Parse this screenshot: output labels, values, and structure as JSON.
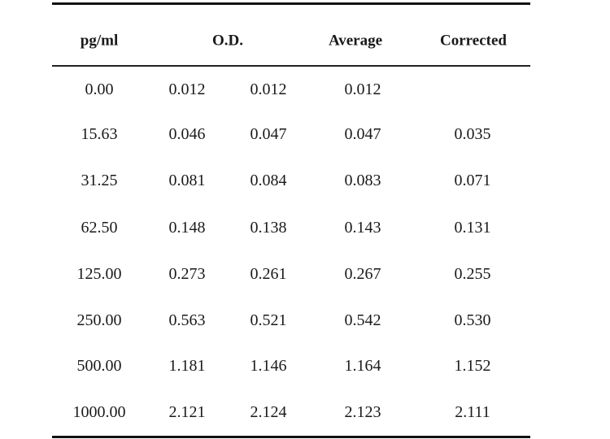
{
  "table": {
    "headers": {
      "concentration": "pg/ml",
      "od": "O.D.",
      "average": "Average",
      "corrected": "Corrected"
    },
    "rows": [
      {
        "conc": "0.00",
        "od1": "0.012",
        "od2": "0.012",
        "avg": "0.012",
        "corr": ""
      },
      {
        "conc": "15.63",
        "od1": "0.046",
        "od2": "0.047",
        "avg": "0.047",
        "corr": "0.035"
      },
      {
        "conc": "31.25",
        "od1": "0.081",
        "od2": "0.084",
        "avg": "0.083",
        "corr": "0.071"
      },
      {
        "conc": "62.50",
        "od1": "0.148",
        "od2": "0.138",
        "avg": "0.143",
        "corr": "0.131"
      },
      {
        "conc": "125.00",
        "od1": "0.273",
        "od2": "0.261",
        "avg": "0.267",
        "corr": "0.255"
      },
      {
        "conc": "250.00",
        "od1": "0.563",
        "od2": "0.521",
        "avg": "0.542",
        "corr": "0.530"
      },
      {
        "conc": "500.00",
        "od1": "1.181",
        "od2": "1.146",
        "avg": "1.164",
        "corr": "1.152"
      },
      {
        "conc": "1000.00",
        "od1": "2.121",
        "od2": "2.124",
        "avg": "2.123",
        "corr": "2.111"
      }
    ]
  }
}
